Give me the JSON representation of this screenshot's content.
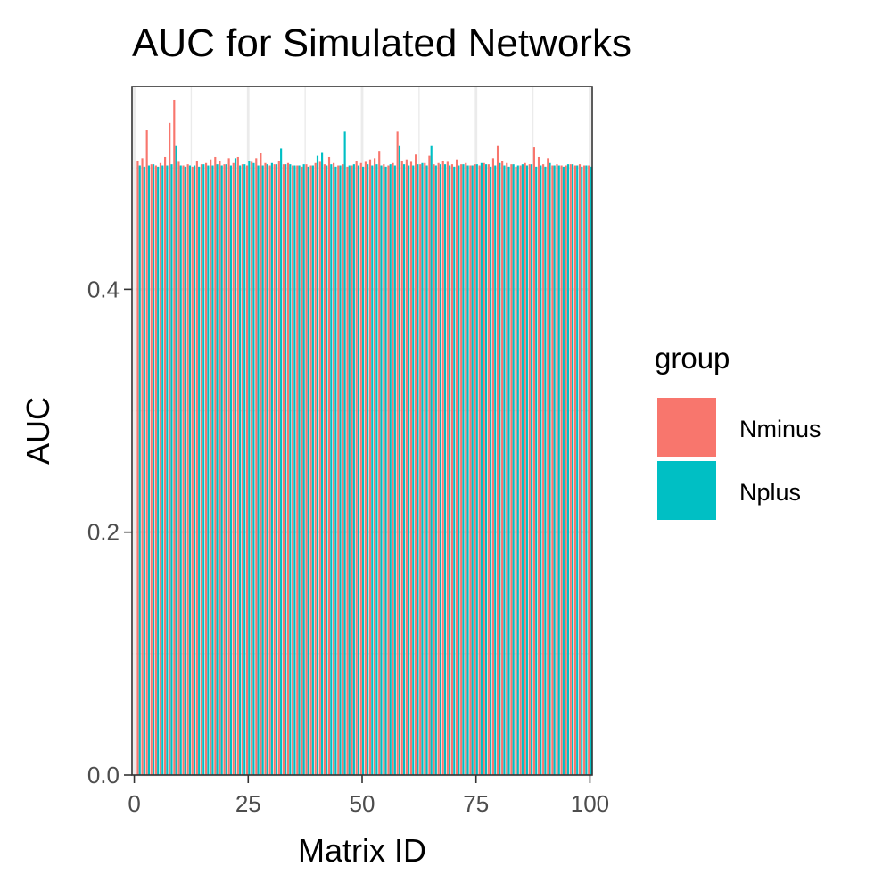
{
  "chart_data": {
    "type": "bar",
    "title": "AUC for Simulated Networks",
    "xlabel": "Matrix ID",
    "ylabel": "AUC",
    "xlim": [
      -0.5,
      100.5
    ],
    "ylim": [
      0,
      0.567
    ],
    "x_ticks": [
      0,
      25,
      50,
      75,
      100
    ],
    "x_tick_labels": [
      "0",
      "25",
      "50",
      "75",
      "100"
    ],
    "y_ticks": [
      0.0,
      0.2,
      0.4
    ],
    "y_tick_labels": [
      "0.0",
      "0.2",
      "0.4"
    ],
    "grid": true,
    "legend": {
      "title": "group",
      "position": "right",
      "entries": [
        "Nminus",
        "Nplus"
      ]
    },
    "colors": {
      "Nminus": "#F8766D",
      "Nplus": "#00BFC4"
    },
    "categories": [
      1,
      2,
      3,
      4,
      5,
      6,
      7,
      8,
      9,
      10,
      11,
      12,
      13,
      14,
      15,
      16,
      17,
      18,
      19,
      20,
      21,
      22,
      23,
      24,
      25,
      26,
      27,
      28,
      29,
      30,
      31,
      32,
      33,
      34,
      35,
      36,
      37,
      38,
      39,
      40,
      41,
      42,
      43,
      44,
      45,
      46,
      47,
      48,
      49,
      50,
      51,
      52,
      53,
      54,
      55,
      56,
      57,
      58,
      59,
      60,
      61,
      62,
      63,
      64,
      65,
      66,
      67,
      68,
      69,
      70,
      71,
      72,
      73,
      74,
      75,
      76,
      77,
      78,
      79,
      80,
      81,
      82,
      83,
      84,
      85,
      86,
      87,
      88,
      89,
      90,
      91,
      92,
      93,
      94,
      95,
      96,
      97,
      98,
      99,
      100
    ],
    "series": [
      {
        "name": "Nminus",
        "values": [
          0.506,
          0.508,
          0.531,
          0.503,
          0.502,
          0.504,
          0.509,
          0.537,
          0.556,
          0.505,
          0.502,
          0.503,
          0.501,
          0.506,
          0.503,
          0.504,
          0.507,
          0.509,
          0.506,
          0.503,
          0.508,
          0.504,
          0.509,
          0.503,
          0.502,
          0.505,
          0.508,
          0.512,
          0.504,
          0.502,
          0.503,
          0.506,
          0.503,
          0.504,
          0.502,
          0.502,
          0.501,
          0.503,
          0.502,
          0.504,
          0.505,
          0.503,
          0.509,
          0.504,
          0.502,
          0.503,
          0.501,
          0.502,
          0.506,
          0.504,
          0.505,
          0.507,
          0.508,
          0.514,
          0.503,
          0.502,
          0.504,
          0.53,
          0.506,
          0.507,
          0.505,
          0.511,
          0.503,
          0.504,
          0.51,
          0.503,
          0.504,
          0.506,
          0.505,
          0.503,
          0.507,
          0.503,
          0.504,
          0.502,
          0.503,
          0.502,
          0.504,
          0.503,
          0.508,
          0.518,
          0.506,
          0.504,
          0.503,
          0.501,
          0.502,
          0.504,
          0.503,
          0.517,
          0.509,
          0.503,
          0.508,
          0.502,
          0.503,
          0.502,
          0.502,
          0.503,
          0.502,
          0.503,
          0.502,
          0.502
        ]
      },
      {
        "name": "Nplus",
        "values": [
          0.502,
          0.501,
          0.502,
          0.503,
          0.501,
          0.502,
          0.502,
          0.503,
          0.518,
          0.502,
          0.501,
          0.502,
          0.502,
          0.501,
          0.503,
          0.502,
          0.502,
          0.503,
          0.502,
          0.503,
          0.502,
          0.508,
          0.502,
          0.503,
          0.506,
          0.504,
          0.502,
          0.502,
          0.503,
          0.504,
          0.503,
          0.516,
          0.503,
          0.503,
          0.502,
          0.502,
          0.503,
          0.501,
          0.502,
          0.51,
          0.513,
          0.502,
          0.503,
          0.501,
          0.502,
          0.53,
          0.502,
          0.503,
          0.502,
          0.501,
          0.503,
          0.502,
          0.503,
          0.502,
          0.501,
          0.503,
          0.502,
          0.518,
          0.503,
          0.502,
          0.502,
          0.503,
          0.504,
          0.502,
          0.518,
          0.502,
          0.503,
          0.503,
          0.502,
          0.501,
          0.502,
          0.503,
          0.502,
          0.502,
          0.503,
          0.504,
          0.503,
          0.501,
          0.502,
          0.504,
          0.502,
          0.501,
          0.503,
          0.502,
          0.503,
          0.502,
          0.503,
          0.501,
          0.502,
          0.501,
          0.504,
          0.502,
          0.502,
          0.501,
          0.503,
          0.503,
          0.502,
          0.501,
          0.502,
          0.501
        ]
      }
    ]
  }
}
